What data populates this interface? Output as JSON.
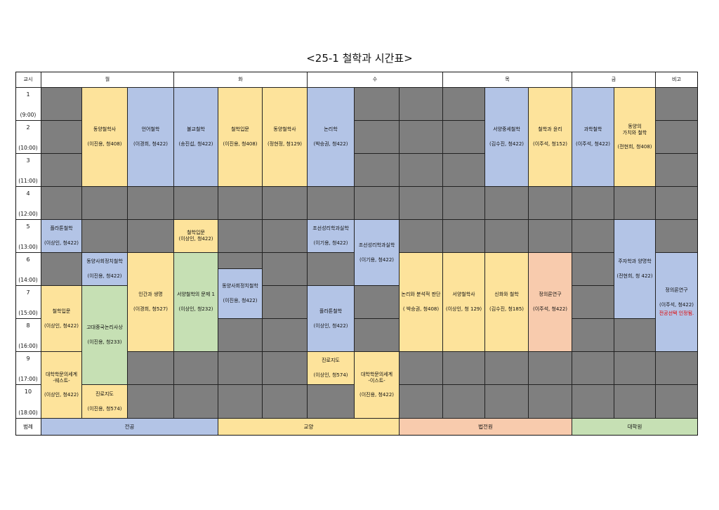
{
  "title": "<25-1 철학과 시간표>",
  "colors": {
    "empty": "#7f7f7f",
    "major": "#b3c4e6",
    "liberal": "#fde39b",
    "law_school": "#f8cbad",
    "graduate": "#c6e0b4"
  },
  "headers": {
    "period": "교시",
    "mon": "월",
    "tue": "화",
    "wed": "수",
    "thu": "목",
    "fri": "금",
    "notes": "비고"
  },
  "periods": [
    {
      "num": "1",
      "time": "(9:00)"
    },
    {
      "num": "2",
      "time": "(10:00)"
    },
    {
      "num": "3",
      "time": "(11:00)"
    },
    {
      "num": "4",
      "time": "(12:00)"
    },
    {
      "num": "5",
      "time": "(13:00)"
    },
    {
      "num": "6",
      "time": "(14:00)"
    },
    {
      "num": "7",
      "time": "(15:00)"
    },
    {
      "num": "8",
      "time": "(16:00)"
    },
    {
      "num": "9",
      "time": "(17:00)"
    },
    {
      "num": "10",
      "time": "(18:00)"
    }
  ],
  "courses": {
    "mon_eastern_phil": {
      "name": "동양철학사",
      "info": "(이진용, 청408)"
    },
    "mon_lang_phil": {
      "name": "언어철학",
      "info": "(이경희, 청422)"
    },
    "tue_buddhist": {
      "name": "불교철학",
      "info": "(송진섭, 청422)"
    },
    "tue_intro": {
      "name": "철학입문",
      "info": "(이진용, 청408)"
    },
    "tue_eastern_phil": {
      "name": "동양철학사",
      "info": "(정현정, 청129)"
    },
    "wed_logic": {
      "name": "논리학",
      "info": "(박승권, 청422)"
    },
    "thu_medieval": {
      "name": "서양중세철학",
      "info": "(김수진, 청422)"
    },
    "thu_ethics": {
      "name": "철학과 윤리",
      "info": "(이주석, 청152)"
    },
    "fri_science": {
      "name": "과학철학",
      "info": "(이주석, 청422)"
    },
    "fri_eastern_value": {
      "name1": "동양의",
      "name2": "가치와 철학",
      "info": "(전현희, 청408)"
    },
    "mon_plato": {
      "name": "플라톤철학",
      "info": "(이상인, 청422)"
    },
    "tue_intro2": {
      "name": "철학입문",
      "info": "(이상인, 청422)"
    },
    "wed_joseon1": {
      "name": "조선성리학과실학",
      "info": "(이기용, 청422)"
    },
    "wed_joseon2": {
      "name": "조선성리학과실학",
      "info": "(이기용, 청422)"
    },
    "fri_zhuzi": {
      "name": "주자학과 양명학",
      "info": "(전현희, 청 422)"
    },
    "mon_eastern_social": {
      "name": "동양사회정치철학",
      "info": "(이진용, 청422)"
    },
    "mon_human_life": {
      "name": "인간과 생명",
      "info": "(이경희, 청527)"
    },
    "tue_western_problems": {
      "name": "서양철학의 문제 1",
      "info": "(이상인, 청232)"
    },
    "tue_eastern_social": {
      "name": "동양사회정치철학",
      "info": "(이진용, 청422)"
    },
    "wed_critical": {
      "name": "논리와 분석적 판단",
      "info": "( 박승권, 청408)"
    },
    "thu_western_hist": {
      "name": "서양철학사",
      "info": "(이상인, 청 129)"
    },
    "thu_myth": {
      "name": "신화와 철학",
      "info": "(김수진, 청185)"
    },
    "thu_justice": {
      "name": "정의론연구",
      "info": "(이주석, 청422)"
    },
    "notes_justice": {
      "name": "정의론연구",
      "info": "(이주석, 청422)",
      "note": "전공선택 인정됨."
    },
    "mon_intro3": {
      "name": "철학입문",
      "info": "(이상인, 청422)"
    },
    "mon_ancient_chinese": {
      "name": "고대중국논리사상",
      "info": "(이진용, 청233)"
    },
    "wed_plato": {
      "name": "플라톤철학",
      "info": "(이상인, 청422)"
    },
    "wed_career": {
      "name": "진로지도",
      "info": "(이상인, 청574)"
    },
    "wed_univ_west": {
      "name1": "대학학문의세계",
      "name2": "-이스트-",
      "info": "(이진용, 청422)"
    },
    "mon_univ_west": {
      "name1": "대학학문의세계",
      "name2": "-웨스트-",
      "info": "(이상인, 청422)"
    },
    "mon_career": {
      "name": "진로지도",
      "info": "(이진용, 청574)"
    }
  },
  "legend": {
    "label": "범례",
    "major": "전공",
    "liberal": "교양",
    "law_school": "법전원",
    "graduate": "대학원"
  }
}
